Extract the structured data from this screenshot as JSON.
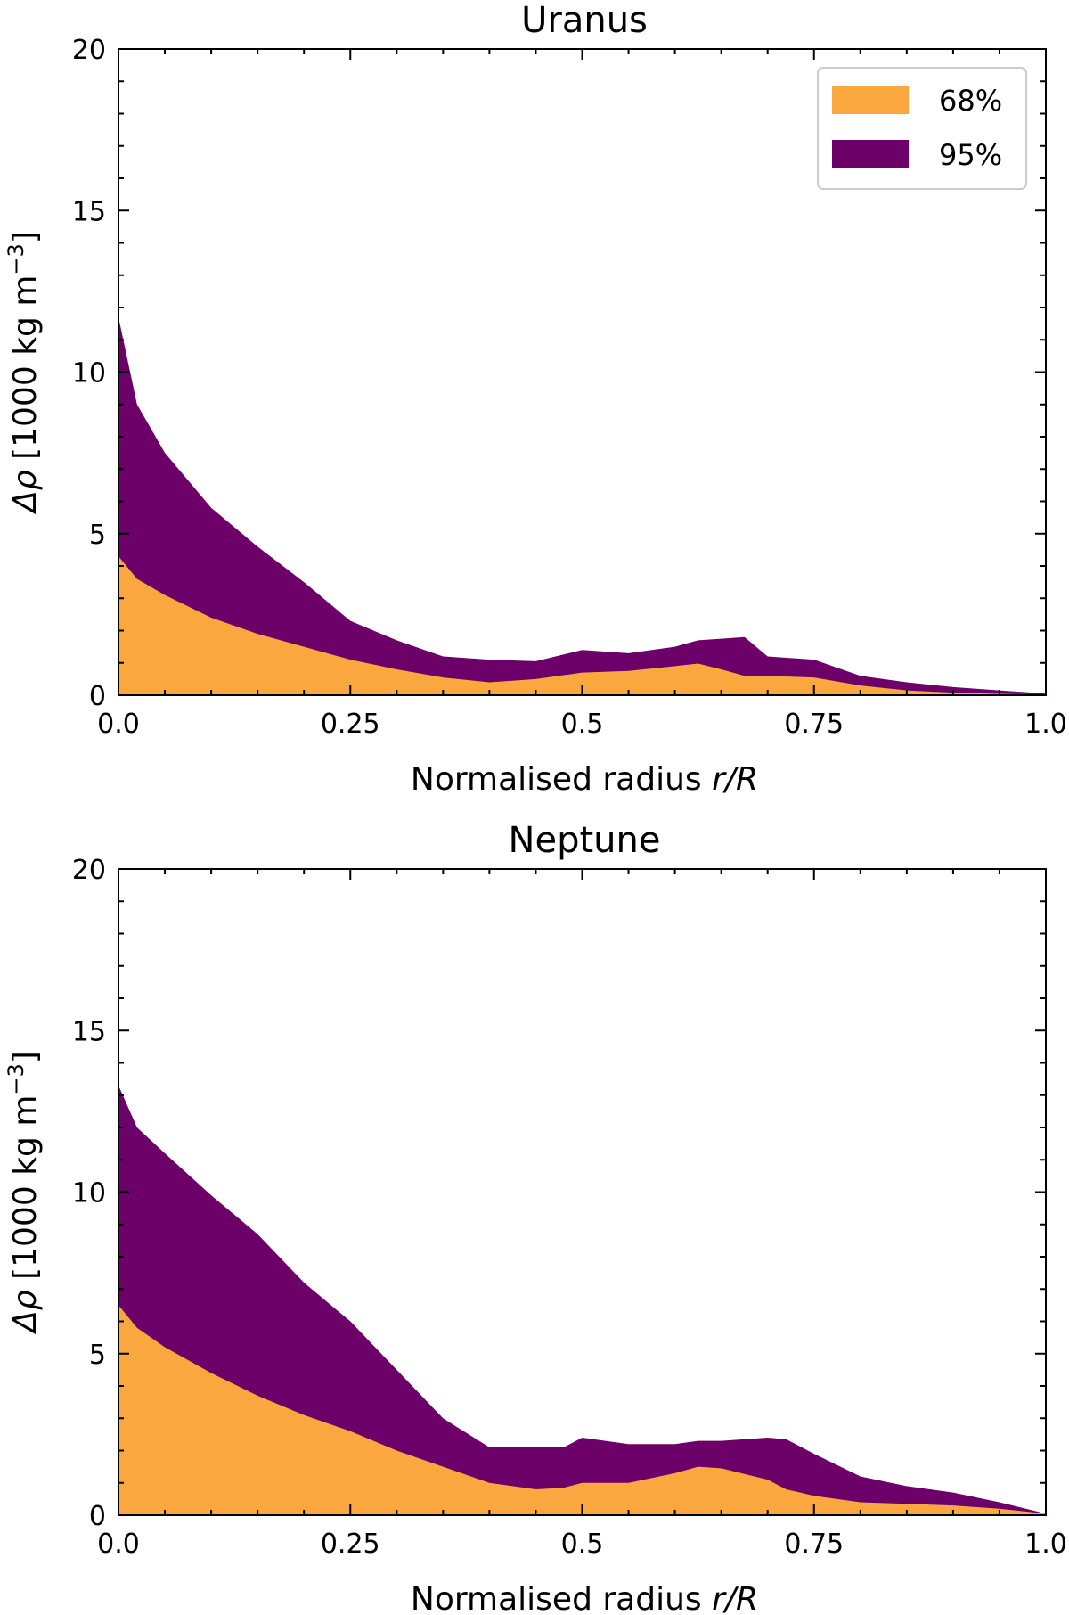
{
  "chart_data": [
    {
      "type": "area",
      "title": "Uranus",
      "xlabel_main": "Normalised radius ",
      "xlabel_italic": "r/R",
      "ylabel_symbol": "Δρ",
      "ylabel_unit": " [1000 kg m",
      "ylabel_exp": "−3",
      "ylabel_close": "]",
      "xlim": [
        0,
        1
      ],
      "ylim": [
        0,
        20
      ],
      "xticks": [
        0,
        0.25,
        0.5,
        0.75,
        1.0
      ],
      "xtick_labels": [
        "0.0",
        "0.25",
        "0.5",
        "0.75",
        "1.0"
      ],
      "yticks": [
        0,
        5,
        10,
        15,
        20
      ],
      "ytick_labels": [
        "0",
        "5",
        "10",
        "15",
        "20"
      ],
      "legend": {
        "position": "top-right",
        "entries": [
          "68%",
          "95%"
        ]
      },
      "x": [
        0.0,
        0.02,
        0.05,
        0.1,
        0.15,
        0.2,
        0.25,
        0.3,
        0.35,
        0.4,
        0.45,
        0.5,
        0.55,
        0.6,
        0.625,
        0.65,
        0.675,
        0.7,
        0.75,
        0.8,
        0.85,
        0.9,
        0.95,
        1.0
      ],
      "series": [
        {
          "name": "68%",
          "color": "#f9a73e",
          "values": [
            4.3,
            3.6,
            3.1,
            2.4,
            1.9,
            1.5,
            1.1,
            0.8,
            0.55,
            0.4,
            0.5,
            0.7,
            0.75,
            0.9,
            0.98,
            0.8,
            0.6,
            0.6,
            0.55,
            0.3,
            0.15,
            0.08,
            0.04,
            0.02
          ]
        },
        {
          "name": "95%",
          "color": "#6c0068",
          "values": [
            11.7,
            9.0,
            7.5,
            5.8,
            4.6,
            3.5,
            2.3,
            1.7,
            1.2,
            1.1,
            1.05,
            1.4,
            1.3,
            1.5,
            1.7,
            1.75,
            1.8,
            1.2,
            1.1,
            0.6,
            0.4,
            0.25,
            0.15,
            0.05
          ]
        }
      ]
    },
    {
      "type": "area",
      "title": "Neptune",
      "xlabel_main": "Normalised radius ",
      "xlabel_italic": "r/R",
      "ylabel_symbol": "Δρ",
      "ylabel_unit": " [1000 kg m",
      "ylabel_exp": "−3",
      "ylabel_close": "]",
      "xlim": [
        0,
        1
      ],
      "ylim": [
        0,
        20
      ],
      "xticks": [
        0,
        0.25,
        0.5,
        0.75,
        1.0
      ],
      "xtick_labels": [
        "0.0",
        "0.25",
        "0.5",
        "0.75",
        "1.0"
      ],
      "yticks": [
        0,
        5,
        10,
        15,
        20
      ],
      "ytick_labels": [
        "0",
        "5",
        "10",
        "15",
        "20"
      ],
      "x": [
        0.0,
        0.02,
        0.05,
        0.1,
        0.15,
        0.2,
        0.25,
        0.3,
        0.35,
        0.4,
        0.45,
        0.48,
        0.5,
        0.55,
        0.6,
        0.625,
        0.65,
        0.7,
        0.72,
        0.75,
        0.8,
        0.85,
        0.9,
        0.95,
        1.0
      ],
      "series": [
        {
          "name": "68%",
          "color": "#f9a73e",
          "values": [
            6.5,
            5.8,
            5.2,
            4.4,
            3.7,
            3.1,
            2.6,
            2.0,
            1.5,
            1.0,
            0.8,
            0.85,
            1.0,
            1.0,
            1.3,
            1.5,
            1.45,
            1.1,
            0.8,
            0.6,
            0.4,
            0.35,
            0.3,
            0.2,
            0.05
          ]
        },
        {
          "name": "95%",
          "color": "#6c0068",
          "values": [
            13.3,
            12.0,
            11.2,
            9.9,
            8.7,
            7.2,
            6.0,
            4.5,
            3.0,
            2.1,
            2.1,
            2.1,
            2.4,
            2.2,
            2.2,
            2.3,
            2.3,
            2.4,
            2.35,
            1.9,
            1.2,
            0.9,
            0.7,
            0.4,
            0.05
          ]
        }
      ]
    }
  ]
}
